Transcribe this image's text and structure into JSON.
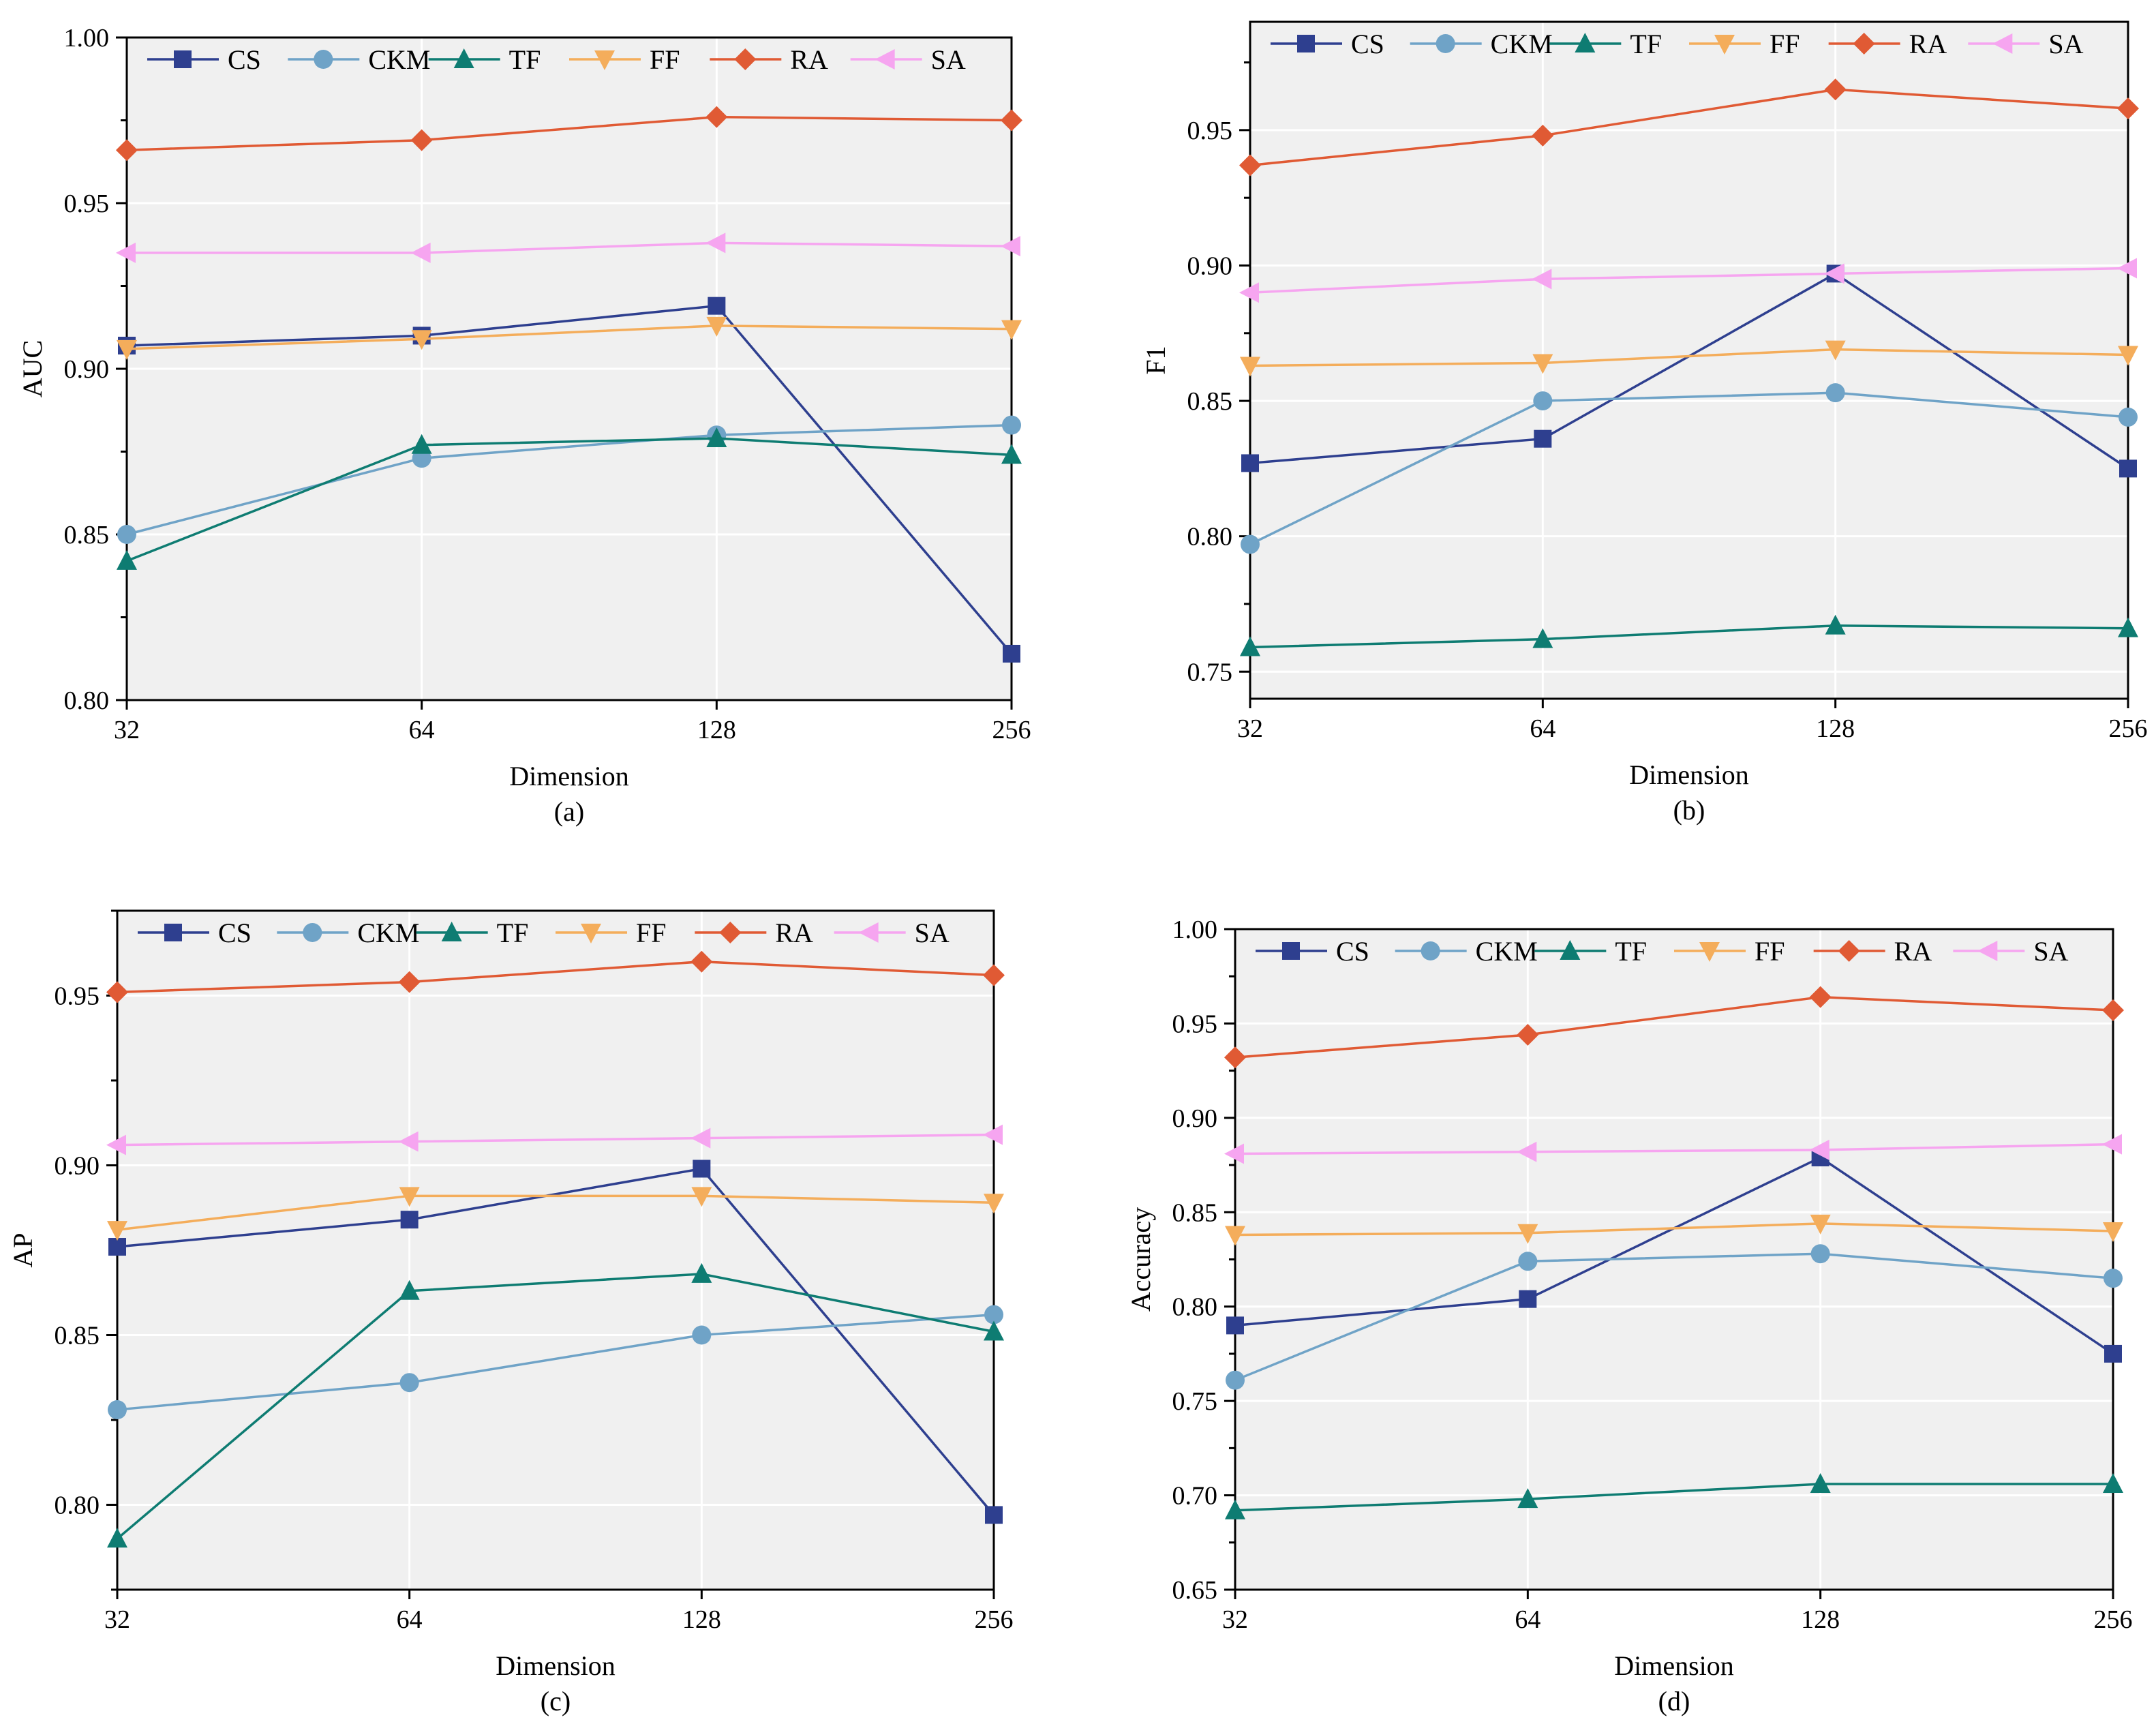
{
  "figure": {
    "colors": {
      "CS": "#2e3f8f",
      "CKM": "#6fa3c7",
      "TF": "#0e7c72",
      "FF": "#f4ad5b",
      "RA": "#e05a34",
      "SA": "#f6a5f0",
      "plot_bg": "#f0f0f0",
      "grid": "#ffffff"
    },
    "markers": {
      "CS": "square",
      "CKM": "circle",
      "TF": "triangle-up",
      "FF": "triangle-down",
      "RA": "diamond",
      "SA": "triangle-left"
    }
  },
  "chart_data": [
    {
      "type": "line",
      "caption": "(a)",
      "xlabel": "Dimension",
      "ylabel": "AUC",
      "x": [
        "32",
        "64",
        "128",
        "256"
      ],
      "xscale": "log2",
      "ylim": [
        0.8,
        1.0
      ],
      "yticks": [
        "0.80",
        "0.85",
        "0.90",
        "0.95",
        "1.00"
      ],
      "grid": true,
      "legend_position": "top",
      "series": [
        {
          "name": "CS",
          "values": [
            0.907,
            0.91,
            0.919,
            0.814
          ]
        },
        {
          "name": "CKM",
          "values": [
            0.85,
            0.873,
            0.88,
            0.883
          ]
        },
        {
          "name": "TF",
          "values": [
            0.842,
            0.877,
            0.879,
            0.874
          ]
        },
        {
          "name": "FF",
          "values": [
            0.906,
            0.909,
            0.913,
            0.912
          ]
        },
        {
          "name": "RA",
          "values": [
            0.966,
            0.969,
            0.976,
            0.975
          ]
        },
        {
          "name": "SA",
          "values": [
            0.935,
            0.935,
            0.938,
            0.937
          ]
        }
      ]
    },
    {
      "type": "line",
      "caption": "(b)",
      "xlabel": "Dimension",
      "ylabel": "F1",
      "x": [
        "32",
        "64",
        "128",
        "256"
      ],
      "xscale": "log2",
      "ylim": [
        0.74,
        0.99
      ],
      "yticks": [
        "0.75",
        "0.80",
        "0.85",
        "0.90",
        "0.95"
      ],
      "grid": true,
      "legend_position": "top",
      "series": [
        {
          "name": "CS",
          "values": [
            0.827,
            0.836,
            0.897,
            0.825
          ]
        },
        {
          "name": "CKM",
          "values": [
            0.797,
            0.85,
            0.853,
            0.844
          ]
        },
        {
          "name": "TF",
          "values": [
            0.759,
            0.762,
            0.767,
            0.766
          ]
        },
        {
          "name": "FF",
          "values": [
            0.863,
            0.864,
            0.869,
            0.867
          ]
        },
        {
          "name": "RA",
          "values": [
            0.937,
            0.948,
            0.965,
            0.958
          ]
        },
        {
          "name": "SA",
          "values": [
            0.89,
            0.895,
            0.897,
            0.899
          ]
        }
      ]
    },
    {
      "type": "line",
      "caption": "(c)",
      "xlabel": "Dimension",
      "ylabel": "AP",
      "x": [
        "32",
        "64",
        "128",
        "256"
      ],
      "xscale": "log2",
      "ylim": [
        0.775,
        0.975
      ],
      "yticks": [
        "0.80",
        "0.85",
        "0.90",
        "0.95"
      ],
      "grid": true,
      "legend_position": "top",
      "series": [
        {
          "name": "CS",
          "values": [
            0.876,
            0.884,
            0.899,
            0.797
          ]
        },
        {
          "name": "CKM",
          "values": [
            0.828,
            0.836,
            0.85,
            0.856
          ]
        },
        {
          "name": "TF",
          "values": [
            0.79,
            0.863,
            0.868,
            0.851
          ]
        },
        {
          "name": "FF",
          "values": [
            0.881,
            0.891,
            0.891,
            0.889
          ]
        },
        {
          "name": "RA",
          "values": [
            0.951,
            0.954,
            0.96,
            0.956
          ]
        },
        {
          "name": "SA",
          "values": [
            0.906,
            0.907,
            0.908,
            0.909
          ]
        }
      ]
    },
    {
      "type": "line",
      "caption": "(d)",
      "xlabel": "Dimension",
      "ylabel": "Accuracy",
      "x": [
        "32",
        "64",
        "128",
        "256"
      ],
      "xscale": "log2",
      "ylim": [
        0.65,
        1.0
      ],
      "yticks": [
        "0.65",
        "0.70",
        "0.75",
        "0.80",
        "0.85",
        "0.90",
        "0.95",
        "1.00"
      ],
      "grid": true,
      "legend_position": "top",
      "series": [
        {
          "name": "CS",
          "values": [
            0.79,
            0.804,
            0.879,
            0.775
          ]
        },
        {
          "name": "CKM",
          "values": [
            0.761,
            0.824,
            0.828,
            0.815
          ]
        },
        {
          "name": "TF",
          "values": [
            0.692,
            0.698,
            0.706,
            0.706
          ]
        },
        {
          "name": "FF",
          "values": [
            0.838,
            0.839,
            0.844,
            0.84
          ]
        },
        {
          "name": "RA",
          "values": [
            0.932,
            0.944,
            0.964,
            0.957
          ]
        },
        {
          "name": "SA",
          "values": [
            0.881,
            0.882,
            0.883,
            0.886
          ]
        }
      ]
    }
  ]
}
